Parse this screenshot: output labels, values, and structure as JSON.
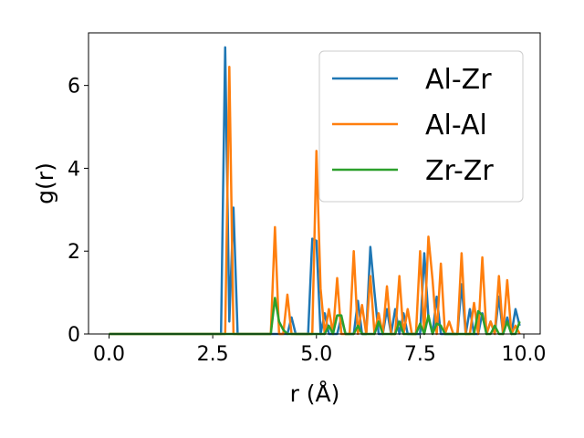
{
  "chart_data": {
    "type": "line",
    "xlabel": "r (Å)",
    "ylabel": "g(r)",
    "x": [
      0,
      0.1,
      0.2,
      0.3,
      0.4,
      0.5,
      0.6,
      0.7,
      0.8,
      0.9,
      1,
      1.1,
      1.2,
      1.3,
      1.4,
      1.5,
      1.6,
      1.7,
      1.8,
      1.9,
      2,
      2.1,
      2.2,
      2.3,
      2.4,
      2.5,
      2.6,
      2.7,
      2.8,
      2.9,
      3,
      3.1,
      3.2,
      3.3,
      3.4,
      3.5,
      3.6,
      3.7,
      3.8,
      3.9,
      4,
      4.1,
      4.2,
      4.3,
      4.4,
      4.5,
      4.6,
      4.7,
      4.8,
      4.9,
      5,
      5.1,
      5.2,
      5.3,
      5.4,
      5.5,
      5.6,
      5.7,
      5.8,
      5.9,
      6,
      6.1,
      6.2,
      6.3,
      6.4,
      6.5,
      6.6,
      6.7,
      6.8,
      6.9,
      7,
      7.1,
      7.2,
      7.3,
      7.4,
      7.5,
      7.6,
      7.7,
      7.8,
      7.9,
      8,
      8.1,
      8.2,
      8.3,
      8.4,
      8.5,
      8.6,
      8.7,
      8.8,
      8.9,
      9,
      9.1,
      9.2,
      9.3,
      9.4,
      9.5,
      9.6,
      9.7,
      9.8,
      9.9
    ],
    "series": [
      {
        "name": "Al-Zr",
        "color": "#1f77b4",
        "values": [
          0,
          0,
          0,
          0,
          0,
          0,
          0,
          0,
          0,
          0,
          0,
          0,
          0,
          0,
          0,
          0,
          0,
          0,
          0,
          0,
          0,
          0,
          0,
          0,
          0,
          0,
          0,
          0,
          6.92,
          0.3,
          3.05,
          0,
          0,
          0,
          0,
          0,
          0,
          0,
          0,
          0,
          0,
          0,
          0,
          0,
          0.4,
          0,
          0,
          0,
          0,
          2.3,
          2.25,
          0,
          0.5,
          0,
          0,
          0,
          0.4,
          0,
          0,
          0,
          0.8,
          0,
          0,
          2.1,
          1.0,
          0,
          0,
          0.6,
          0,
          0.6,
          0,
          0.5,
          0,
          0,
          0,
          0,
          1.95,
          0.4,
          0,
          0.9,
          0,
          0,
          0,
          0,
          0,
          1.2,
          0,
          0.6,
          0,
          0,
          0.5,
          0,
          0.3,
          0,
          0.9,
          0,
          0.4,
          0,
          0.6,
          0.2
        ]
      },
      {
        "name": "Al-Al",
        "color": "#ff7f0e",
        "values": [
          0,
          0,
          0,
          0,
          0,
          0,
          0,
          0,
          0,
          0,
          0,
          0,
          0,
          0,
          0,
          0,
          0,
          0,
          0,
          0,
          0,
          0,
          0,
          0,
          0,
          0,
          0,
          0,
          0,
          6.45,
          0,
          0,
          0,
          0,
          0,
          0,
          0,
          0,
          0,
          0,
          2.58,
          0,
          0,
          0.95,
          0,
          0,
          0,
          0,
          0,
          0,
          4.42,
          1.1,
          0,
          0.6,
          0,
          1.35,
          0,
          0,
          0,
          2.0,
          0,
          0.7,
          0,
          1.4,
          0,
          0.5,
          0,
          1.15,
          0,
          0,
          1.4,
          0,
          0.6,
          0,
          0,
          2.0,
          0,
          2.35,
          1.3,
          0,
          1.7,
          0,
          0.3,
          0,
          0,
          1.95,
          0,
          0,
          0.75,
          0,
          1.85,
          0,
          0.3,
          0,
          1.4,
          0,
          1.3,
          0,
          0.2,
          0
        ]
      },
      {
        "name": "Zr-Zr",
        "color": "#2ca02c",
        "values": [
          0,
          0,
          0,
          0,
          0,
          0,
          0,
          0,
          0,
          0,
          0,
          0,
          0,
          0,
          0,
          0,
          0,
          0,
          0,
          0,
          0,
          0,
          0,
          0,
          0,
          0,
          0,
          0,
          0,
          0,
          0,
          0,
          0,
          0,
          0,
          0,
          0,
          0,
          0,
          0,
          0.87,
          0.3,
          0.1,
          0,
          0,
          0,
          0,
          0,
          0,
          0,
          0,
          0,
          0,
          0.2,
          0,
          0.45,
          0.45,
          0,
          0,
          0,
          0.2,
          0,
          0,
          0,
          0,
          0.3,
          0,
          0,
          0,
          0,
          0.3,
          0,
          0,
          0,
          0,
          0.25,
          0,
          0.45,
          0,
          0.25,
          0.2,
          0,
          0,
          0,
          0,
          0,
          0,
          0,
          0,
          0.55,
          0.45,
          0,
          0,
          0.2,
          0,
          0,
          0.3,
          0,
          0,
          0.3
        ]
      }
    ],
    "xlim": [
      -0.495,
      10.395
    ],
    "ylim": [
      0,
      7.27
    ],
    "xticks": [
      {
        "value": 0,
        "label": "0.0"
      },
      {
        "value": 2.5,
        "label": "2.5"
      },
      {
        "value": 5,
        "label": "5.0"
      },
      {
        "value": 7.5,
        "label": "7.5"
      },
      {
        "value": 10,
        "label": "10.0"
      }
    ],
    "yticks": [
      0,
      2,
      4,
      6
    ],
    "legend": "upper right"
  }
}
